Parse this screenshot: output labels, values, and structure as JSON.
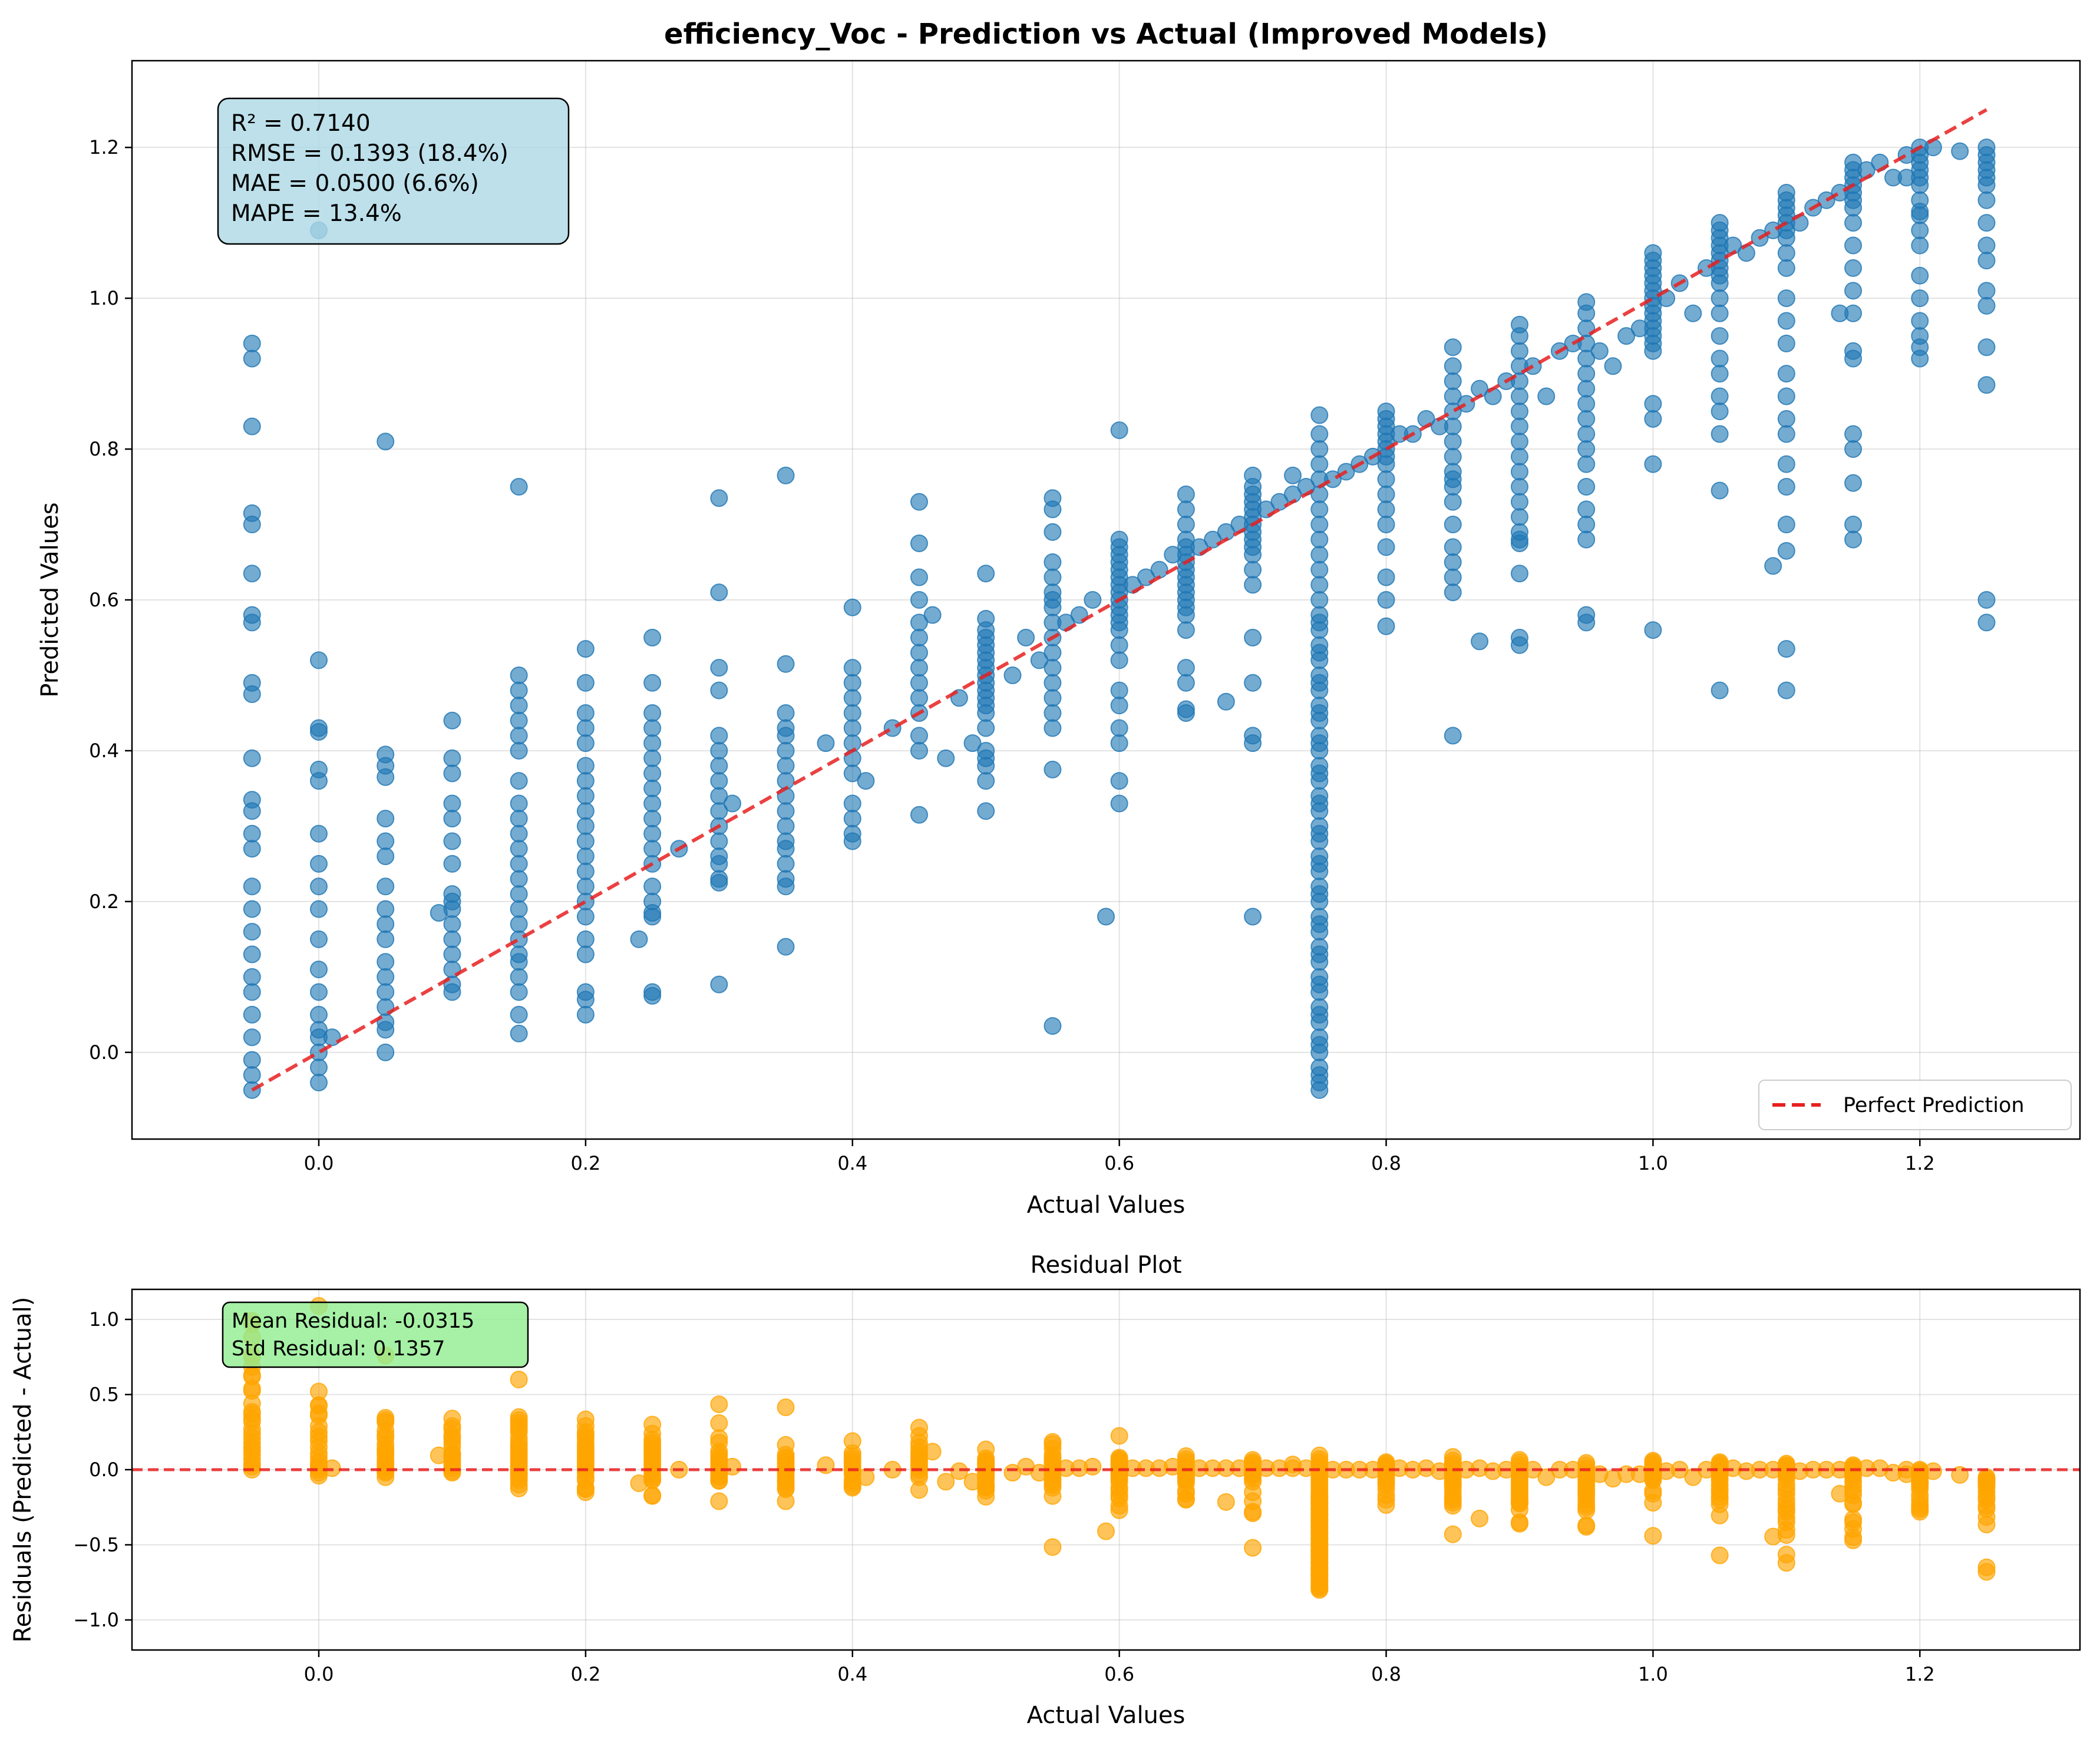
{
  "chart_data": [
    {
      "type": "scatter",
      "title": "efficiency_Voc - Prediction vs Actual (Improved Models)",
      "xlabel": "Actual Values",
      "ylabel": "Predicted Values",
      "xlim": [
        -0.14,
        1.32
      ],
      "ylim": [
        -0.115,
        1.315
      ],
      "xticks": [
        0.0,
        0.2,
        0.4,
        0.6,
        0.8,
        1.0,
        1.2
      ],
      "xtick_labels": [
        "0.0",
        "0.2",
        "0.4",
        "0.6",
        "0.8",
        "1.0",
        "1.2"
      ],
      "yticks": [
        0.0,
        0.2,
        0.4,
        0.6,
        0.8,
        1.0,
        1.2
      ],
      "ytick_labels": [
        "0.0",
        "0.2",
        "0.4",
        "0.6",
        "0.8",
        "1.0",
        "1.2"
      ],
      "grid": true,
      "legend_position": "lower-right",
      "colors": {
        "points": "#1f77b4",
        "reference_line": "#e82020",
        "stats_box": "#add8e6"
      },
      "reference_line": {
        "name": "Perfect Prediction",
        "x": [
          -0.05,
          1.25
        ],
        "y": [
          -0.05,
          1.25
        ]
      },
      "stats_box": [
        "R² = 0.7140",
        "RMSE = 0.1393 (18.4%)",
        "MAE = 0.0500 (6.6%)",
        "MAPE = 13.4%"
      ],
      "points_note": "",
      "x": [
        -0.05,
        -0.05,
        -0.05,
        -0.05,
        -0.05,
        -0.05,
        -0.05,
        -0.05,
        -0.05,
        -0.05,
        -0.05,
        -0.05,
        -0.05,
        -0.05,
        -0.05,
        -0.05,
        -0.05,
        -0.05,
        -0.05,
        -0.05,
        -0.05,
        -0.05,
        -0.05,
        -0.05,
        -0.05,
        -0.05,
        0.0,
        0.0,
        0.0,
        0.0,
        0.0,
        0.0,
        0.0,
        0.0,
        0.0,
        0.0,
        0.0,
        0.0,
        0.0,
        0.0,
        0.0,
        0.0,
        0.0,
        0.0,
        0.0,
        0.01,
        0.05,
        0.05,
        0.05,
        0.05,
        0.05,
        0.05,
        0.05,
        0.05,
        0.05,
        0.05,
        0.05,
        0.05,
        0.05,
        0.05,
        0.05,
        0.05,
        0.05,
        0.05,
        0.09,
        0.1,
        0.1,
        0.1,
        0.1,
        0.1,
        0.1,
        0.1,
        0.1,
        0.1,
        0.1,
        0.1,
        0.1,
        0.1,
        0.1,
        0.1,
        0.1,
        0.15,
        0.15,
        0.15,
        0.15,
        0.15,
        0.15,
        0.15,
        0.15,
        0.15,
        0.15,
        0.15,
        0.15,
        0.15,
        0.15,
        0.15,
        0.15,
        0.15,
        0.15,
        0.15,
        0.15,
        0.15,
        0.15,
        0.15,
        0.15,
        0.2,
        0.2,
        0.2,
        0.2,
        0.2,
        0.2,
        0.2,
        0.2,
        0.2,
        0.2,
        0.2,
        0.2,
        0.2,
        0.2,
        0.2,
        0.2,
        0.2,
        0.2,
        0.2,
        0.2,
        0.2,
        0.24,
        0.25,
        0.25,
        0.25,
        0.25,
        0.25,
        0.25,
        0.25,
        0.25,
        0.25,
        0.25,
        0.25,
        0.25,
        0.25,
        0.25,
        0.25,
        0.25,
        0.25,
        0.25,
        0.25,
        0.27,
        0.3,
        0.3,
        0.3,
        0.3,
        0.3,
        0.3,
        0.3,
        0.3,
        0.3,
        0.3,
        0.3,
        0.3,
        0.3,
        0.3,
        0.3,
        0.3,
        0.3,
        0.31,
        0.35,
        0.35,
        0.35,
        0.35,
        0.35,
        0.35,
        0.35,
        0.35,
        0.35,
        0.35,
        0.35,
        0.35,
        0.35,
        0.35,
        0.35,
        0.35,
        0.35,
        0.38,
        0.4,
        0.4,
        0.4,
        0.4,
        0.4,
        0.4,
        0.4,
        0.4,
        0.4,
        0.4,
        0.4,
        0.4,
        0.4,
        0.41,
        0.43,
        0.45,
        0.45,
        0.45,
        0.45,
        0.45,
        0.45,
        0.45,
        0.45,
        0.45,
        0.45,
        0.45,
        0.45,
        0.45,
        0.45,
        0.46,
        0.47,
        0.48,
        0.49,
        0.5,
        0.5,
        0.5,
        0.5,
        0.5,
        0.5,
        0.5,
        0.5,
        0.5,
        0.5,
        0.5,
        0.5,
        0.5,
        0.5,
        0.5,
        0.5,
        0.5,
        0.5,
        0.5,
        0.5,
        0.52,
        0.53,
        0.54,
        0.55,
        0.55,
        0.55,
        0.55,
        0.55,
        0.55,
        0.55,
        0.55,
        0.55,
        0.55,
        0.55,
        0.55,
        0.55,
        0.55,
        0.55,
        0.55,
        0.55,
        0.55,
        0.56,
        0.57,
        0.58,
        0.59,
        0.6,
        0.6,
        0.6,
        0.6,
        0.6,
        0.6,
        0.6,
        0.6,
        0.6,
        0.6,
        0.6,
        0.6,
        0.6,
        0.6,
        0.6,
        0.6,
        0.6,
        0.6,
        0.6,
        0.6,
        0.6,
        0.6,
        0.61,
        0.62,
        0.63,
        0.64,
        0.65,
        0.65,
        0.65,
        0.65,
        0.65,
        0.65,
        0.65,
        0.65,
        0.65,
        0.65,
        0.65,
        0.65,
        0.65,
        0.65,
        0.65,
        0.65,
        0.65,
        0.65,
        0.65,
        0.66,
        0.67,
        0.68,
        0.68,
        0.69,
        0.7,
        0.7,
        0.7,
        0.7,
        0.7,
        0.7,
        0.7,
        0.7,
        0.7,
        0.7,
        0.7,
        0.7,
        0.7,
        0.7,
        0.7,
        0.7,
        0.7,
        0.7,
        0.71,
        0.72,
        0.73,
        0.73,
        0.74,
        0.75,
        0.75,
        0.75,
        0.75,
        0.75,
        0.75,
        0.75,
        0.75,
        0.75,
        0.75,
        0.75,
        0.75,
        0.75,
        0.75,
        0.75,
        0.75,
        0.75,
        0.75,
        0.75,
        0.75,
        0.75,
        0.75,
        0.75,
        0.75,
        0.75,
        0.75,
        0.75,
        0.75,
        0.75,
        0.75,
        0.75,
        0.75,
        0.75,
        0.75,
        0.75,
        0.75,
        0.75,
        0.75,
        0.75,
        0.75,
        0.75,
        0.75,
        0.75,
        0.75,
        0.75,
        0.75,
        0.75,
        0.75,
        0.75,
        0.75,
        0.75,
        0.75,
        0.75,
        0.75,
        0.75,
        0.75,
        0.75,
        0.75,
        0.75,
        0.75,
        0.75,
        0.75,
        0.76,
        0.77,
        0.78,
        0.79,
        0.8,
        0.8,
        0.8,
        0.8,
        0.8,
        0.8,
        0.8,
        0.8,
        0.8,
        0.8,
        0.8,
        0.8,
        0.8,
        0.8,
        0.8,
        0.8,
        0.81,
        0.82,
        0.83,
        0.84,
        0.85,
        0.85,
        0.85,
        0.85,
        0.85,
        0.85,
        0.85,
        0.85,
        0.85,
        0.85,
        0.85,
        0.85,
        0.85,
        0.85,
        0.85,
        0.85,
        0.85,
        0.85,
        0.86,
        0.87,
        0.87,
        0.88,
        0.89,
        0.9,
        0.9,
        0.9,
        0.9,
        0.9,
        0.9,
        0.9,
        0.9,
        0.9,
        0.9,
        0.9,
        0.9,
        0.9,
        0.9,
        0.9,
        0.9,
        0.9,
        0.9,
        0.9,
        0.9,
        0.91,
        0.92,
        0.93,
        0.94,
        0.95,
        0.95,
        0.95,
        0.95,
        0.95,
        0.95,
        0.95,
        0.95,
        0.95,
        0.95,
        0.95,
        0.95,
        0.95,
        0.95,
        0.95,
        0.95,
        0.95,
        0.95,
        0.96,
        0.97,
        0.98,
        0.99,
        1.0,
        1.0,
        1.0,
        1.0,
        1.0,
        1.0,
        1.0,
        1.0,
        1.0,
        1.0,
        1.0,
        1.0,
        1.0,
        1.0,
        1.0,
        1.0,
        1.0,
        1.0,
        1.01,
        1.02,
        1.03,
        1.04,
        1.05,
        1.05,
        1.05,
        1.05,
        1.05,
        1.05,
        1.05,
        1.05,
        1.05,
        1.05,
        1.05,
        1.05,
        1.05,
        1.05,
        1.05,
        1.05,
        1.05,
        1.05,
        1.05,
        1.06,
        1.07,
        1.08,
        1.09,
        1.09,
        1.1,
        1.1,
        1.1,
        1.1,
        1.1,
        1.1,
        1.1,
        1.1,
        1.1,
        1.1,
        1.1,
        1.1,
        1.1,
        1.1,
        1.1,
        1.1,
        1.1,
        1.1,
        1.1,
        1.1,
        1.1,
        1.1,
        1.11,
        1.12,
        1.13,
        1.14,
        1.14,
        1.15,
        1.15,
        1.15,
        1.15,
        1.15,
        1.15,
        1.15,
        1.15,
        1.15,
        1.15,
        1.15,
        1.15,
        1.15,
        1.15,
        1.15,
        1.15,
        1.15,
        1.15,
        1.15,
        1.16,
        1.17,
        1.18,
        1.19,
        1.19,
        1.2,
        1.2,
        1.2,
        1.2,
        1.2,
        1.2,
        1.2,
        1.2,
        1.2,
        1.2,
        1.2,
        1.2,
        1.2,
        1.2,
        1.2,
        1.2,
        1.2,
        1.21,
        1.23,
        1.25,
        1.25,
        1.25,
        1.25,
        1.25,
        1.25,
        1.25,
        1.25,
        1.25,
        1.25,
        1.25,
        1.25,
        1.25,
        1.25,
        1.25,
        1.25
      ],
      "y": [
        0.94,
        0.92,
        0.83,
        0.715,
        0.7,
        0.635,
        0.58,
        0.57,
        0.49,
        0.475,
        0.39,
        0.335,
        0.32,
        0.29,
        0.27,
        0.22,
        0.19,
        0.16,
        0.13,
        0.1,
        0.08,
        0.05,
        0.02,
        -0.01,
        -0.03,
        -0.05,
        1.09,
        0.52,
        0.43,
        0.425,
        0.375,
        0.36,
        0.29,
        0.25,
        0.22,
        0.19,
        0.15,
        0.11,
        0.08,
        0.05,
        0.02,
        0.0,
        -0.04,
        0.03,
        -0.02,
        0.02,
        0.81,
        0.395,
        0.38,
        0.365,
        0.31,
        0.28,
        0.26,
        0.22,
        0.19,
        0.17,
        0.15,
        0.12,
        0.1,
        0.08,
        0.06,
        0.04,
        0.0,
        0.03,
        0.185,
        0.44,
        0.39,
        0.37,
        0.33,
        0.31,
        0.28,
        0.25,
        0.21,
        0.19,
        0.17,
        0.15,
        0.13,
        0.11,
        0.09,
        0.08,
        0.2,
        0.75,
        0.5,
        0.48,
        0.46,
        0.44,
        0.42,
        0.4,
        0.36,
        0.33,
        0.31,
        0.29,
        0.27,
        0.25,
        0.23,
        0.21,
        0.19,
        0.17,
        0.15,
        0.12,
        0.1,
        0.08,
        0.05,
        0.025,
        0.13,
        0.535,
        0.49,
        0.45,
        0.43,
        0.41,
        0.38,
        0.36,
        0.34,
        0.32,
        0.3,
        0.28,
        0.26,
        0.24,
        0.22,
        0.2,
        0.18,
        0.15,
        0.13,
        0.08,
        0.07,
        0.05,
        0.15,
        0.55,
        0.49,
        0.45,
        0.43,
        0.41,
        0.39,
        0.37,
        0.35,
        0.33,
        0.31,
        0.29,
        0.27,
        0.25,
        0.22,
        0.2,
        0.185,
        0.18,
        0.08,
        0.075,
        0.27,
        0.735,
        0.61,
        0.51,
        0.48,
        0.42,
        0.4,
        0.38,
        0.36,
        0.34,
        0.32,
        0.3,
        0.28,
        0.26,
        0.25,
        0.23,
        0.225,
        0.09,
        0.33,
        0.765,
        0.515,
        0.45,
        0.43,
        0.42,
        0.4,
        0.38,
        0.36,
        0.34,
        0.32,
        0.3,
        0.28,
        0.25,
        0.23,
        0.22,
        0.14,
        0.27,
        0.41,
        0.59,
        0.51,
        0.49,
        0.47,
        0.45,
        0.43,
        0.41,
        0.39,
        0.37,
        0.33,
        0.31,
        0.29,
        0.28,
        0.36,
        0.43,
        0.73,
        0.675,
        0.63,
        0.6,
        0.57,
        0.55,
        0.53,
        0.51,
        0.49,
        0.47,
        0.45,
        0.42,
        0.4,
        0.315,
        0.58,
        0.39,
        0.47,
        0.41,
        0.635,
        0.575,
        0.56,
        0.55,
        0.54,
        0.53,
        0.52,
        0.51,
        0.5,
        0.49,
        0.48,
        0.47,
        0.46,
        0.45,
        0.43,
        0.4,
        0.39,
        0.38,
        0.32,
        0.36,
        0.5,
        0.55,
        0.52,
        0.735,
        0.72,
        0.69,
        0.65,
        0.63,
        0.61,
        0.6,
        0.59,
        0.57,
        0.55,
        0.53,
        0.51,
        0.49,
        0.47,
        0.45,
        0.43,
        0.375,
        0.035,
        0.57,
        0.58,
        0.6,
        0.18,
        0.825,
        0.68,
        0.67,
        0.66,
        0.65,
        0.64,
        0.63,
        0.62,
        0.61,
        0.6,
        0.59,
        0.58,
        0.57,
        0.56,
        0.54,
        0.52,
        0.48,
        0.46,
        0.43,
        0.41,
        0.36,
        0.33,
        0.62,
        0.63,
        0.64,
        0.66,
        0.74,
        0.72,
        0.7,
        0.68,
        0.67,
        0.66,
        0.65,
        0.64,
        0.63,
        0.62,
        0.61,
        0.6,
        0.59,
        0.58,
        0.56,
        0.51,
        0.49,
        0.455,
        0.45,
        0.67,
        0.68,
        0.69,
        0.465,
        0.7,
        0.765,
        0.75,
        0.74,
        0.73,
        0.72,
        0.71,
        0.7,
        0.69,
        0.68,
        0.67,
        0.66,
        0.64,
        0.62,
        0.55,
        0.49,
        0.42,
        0.41,
        0.18,
        0.72,
        0.73,
        0.765,
        0.74,
        0.75,
        0.845,
        0.82,
        0.8,
        0.78,
        0.76,
        0.74,
        0.72,
        0.7,
        0.68,
        0.66,
        0.64,
        0.62,
        0.6,
        0.58,
        0.56,
        0.54,
        0.52,
        0.5,
        0.48,
        0.46,
        0.44,
        0.42,
        0.4,
        0.38,
        0.36,
        0.34,
        0.32,
        0.3,
        0.28,
        0.26,
        0.24,
        0.22,
        0.2,
        0.18,
        0.16,
        0.14,
        0.12,
        0.1,
        0.08,
        0.06,
        0.04,
        0.02,
        0.0,
        -0.02,
        -0.04,
        -0.05,
        0.57,
        0.53,
        0.49,
        0.45,
        0.41,
        0.37,
        0.33,
        0.29,
        0.25,
        0.21,
        0.17,
        0.13,
        0.09,
        0.05,
        0.01,
        -0.03,
        0.76,
        0.77,
        0.78,
        0.79,
        0.85,
        0.84,
        0.83,
        0.82,
        0.81,
        0.8,
        0.79,
        0.78,
        0.76,
        0.74,
        0.72,
        0.7,
        0.67,
        0.63,
        0.6,
        0.565,
        0.82,
        0.82,
        0.84,
        0.83,
        0.935,
        0.91,
        0.89,
        0.87,
        0.85,
        0.83,
        0.81,
        0.79,
        0.77,
        0.75,
        0.73,
        0.7,
        0.67,
        0.65,
        0.63,
        0.61,
        0.42,
        0.76,
        0.86,
        0.88,
        0.545,
        0.87,
        0.89,
        0.965,
        0.95,
        0.93,
        0.91,
        0.89,
        0.87,
        0.85,
        0.83,
        0.81,
        0.79,
        0.77,
        0.75,
        0.73,
        0.71,
        0.68,
        0.675,
        0.635,
        0.55,
        0.54,
        0.69,
        0.91,
        0.87,
        0.93,
        0.94,
        0.995,
        0.98,
        0.96,
        0.94,
        0.92,
        0.9,
        0.88,
        0.86,
        0.84,
        0.82,
        0.8,
        0.78,
        0.75,
        0.72,
        0.7,
        0.68,
        0.58,
        0.57,
        0.93,
        0.91,
        0.95,
        0.96,
        1.06,
        1.05,
        1.04,
        1.03,
        1.02,
        1.01,
        1.0,
        0.99,
        0.98,
        0.97,
        0.96,
        0.95,
        0.94,
        0.93,
        0.86,
        0.84,
        0.78,
        0.56,
        1.0,
        1.02,
        0.98,
        1.04,
        1.1,
        1.09,
        1.08,
        1.07,
        1.06,
        1.05,
        1.04,
        1.03,
        1.02,
        1.0,
        0.98,
        0.95,
        0.92,
        0.9,
        0.87,
        0.85,
        0.82,
        0.745,
        0.48,
        1.07,
        1.06,
        1.08,
        1.09,
        0.645,
        1.14,
        1.13,
        1.12,
        1.11,
        1.1,
        1.09,
        1.08,
        1.06,
        1.04,
        1.0,
        0.97,
        0.94,
        0.9,
        0.87,
        0.84,
        0.82,
        0.78,
        0.75,
        0.7,
        0.665,
        0.535,
        0.48,
        1.1,
        1.12,
        1.13,
        1.14,
        0.98,
        1.18,
        1.17,
        1.16,
        1.15,
        1.14,
        1.13,
        1.12,
        1.1,
        1.07,
        1.04,
        1.01,
        0.98,
        0.93,
        0.92,
        0.82,
        0.8,
        0.755,
        0.7,
        0.68,
        1.17,
        1.18,
        1.16,
        1.19,
        1.16,
        1.2,
        1.19,
        1.18,
        1.17,
        1.16,
        1.15,
        1.13,
        1.11,
        1.09,
        1.07,
        1.03,
        1.0,
        0.97,
        0.95,
        0.935,
        0.92,
        1.115,
        1.2,
        1.195,
        1.2,
        1.19,
        1.18,
        1.17,
        1.16,
        1.15,
        1.13,
        1.1,
        1.07,
        1.05,
        1.01,
        0.99,
        0.935,
        0.885,
        0.6,
        0.57
      ]
    },
    {
      "type": "scatter",
      "title": "Residual Plot",
      "xlabel": "Actual Values",
      "ylabel": "Residuals (Predicted - Actual)",
      "xlim": [
        -0.14,
        1.32
      ],
      "ylim": [
        -1.2,
        1.2
      ],
      "xticks": [
        0.0,
        0.2,
        0.4,
        0.6,
        0.8,
        1.0,
        1.2
      ],
      "xtick_labels": [
        "0.0",
        "0.2",
        "0.4",
        "0.6",
        "0.8",
        "1.0",
        "1.2"
      ],
      "yticks": [
        -1.0,
        -0.5,
        0.0,
        0.5,
        1.0
      ],
      "ytick_labels": [
        "−1.0",
        "−0.5",
        "0.0",
        "0.5",
        "1.0"
      ],
      "grid": true,
      "colors": {
        "points": "#ffa500",
        "zero_line": "#e82020",
        "stats_box": "#90ee90"
      },
      "zero_line_y": 0.0,
      "stats_box": [
        "Mean Residual: -0.0315",
        "Std Residual: 0.1357"
      ],
      "residual_from": "prediction_chart"
    }
  ]
}
